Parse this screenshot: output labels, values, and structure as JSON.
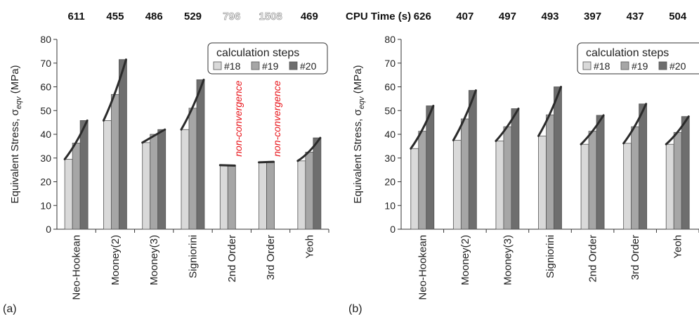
{
  "cpu_time_label": "CPU Time (s)",
  "chart_data": [
    {
      "type": "bar",
      "panel_label": "(a)",
      "ylabel": "Equivalent Stress, σeqv (MPa)",
      "ylabel_main": "Equivalent Stress, σ",
      "ylabel_sub": "eqv",
      "ylabel_unit": " (MPa)",
      "ylim": [
        0,
        80
      ],
      "yticks": [
        0,
        10,
        20,
        30,
        40,
        50,
        60,
        70,
        80
      ],
      "categories": [
        "Neo-Hookean",
        "Mooney(2)",
        "Mooney(3)",
        "Signiorini",
        "2nd Order",
        "3rd Order",
        "Yeoh"
      ],
      "cpu_times": [
        "611",
        "455",
        "486",
        "529",
        "796",
        "1508",
        "469"
      ],
      "cpu_times_faded": [
        false,
        false,
        false,
        false,
        true,
        true,
        false
      ],
      "legend_title": "calculation steps",
      "legend_placement": "top-right",
      "series": [
        {
          "name": "#18",
          "color": "#d9d9d9",
          "values": [
            29.5,
            45.8,
            36.5,
            42.0,
            27.0,
            28.2,
            28.8
          ]
        },
        {
          "name": "#19",
          "color": "#a6a6a6",
          "values": [
            36.3,
            56.8,
            40.0,
            51.0,
            26.8,
            28.4,
            32.5
          ]
        },
        {
          "name": "#20",
          "color": "#6e6e6e",
          "values": [
            45.8,
            71.5,
            42.0,
            63.0,
            null,
            null,
            38.5
          ]
        }
      ],
      "annotations": [
        {
          "category": "2nd Order",
          "text": "non-convergence"
        },
        {
          "category": "3rd Order",
          "text": "non-convergence"
        }
      ]
    },
    {
      "type": "bar",
      "panel_label": "(b)",
      "ylabel": "Equivalent Stress, σeqv (MPa)",
      "ylabel_main": "Equivalent Stress, σ",
      "ylabel_sub": "eqv",
      "ylabel_unit": " (MPa)",
      "ylim": [
        0,
        80
      ],
      "yticks": [
        0,
        10,
        20,
        30,
        40,
        50,
        60,
        70,
        80
      ],
      "categories": [
        "Neo-Hookean",
        "Mooney(2)",
        "Mooney(3)",
        "Signiorini",
        "2nd Order",
        "3rd Order",
        "Yeoh"
      ],
      "cpu_times": [
        "626",
        "407",
        "497",
        "493",
        "397",
        "437",
        "504"
      ],
      "cpu_times_faded": [
        false,
        false,
        false,
        false,
        false,
        false,
        false
      ],
      "legend_title": "calculation steps",
      "legend_placement": "top-right",
      "series": [
        {
          "name": "#18",
          "color": "#d9d9d9",
          "values": [
            34.0,
            37.5,
            37.2,
            39.3,
            35.8,
            36.2,
            35.8
          ]
        },
        {
          "name": "#19",
          "color": "#a6a6a6",
          "values": [
            41.3,
            46.5,
            43.2,
            48.2,
            41.3,
            43.2,
            40.8
          ]
        },
        {
          "name": "#20",
          "color": "#6e6e6e",
          "values": [
            52.0,
            58.5,
            50.8,
            60.0,
            48.0,
            52.8,
            47.5
          ]
        }
      ],
      "annotations": []
    }
  ]
}
